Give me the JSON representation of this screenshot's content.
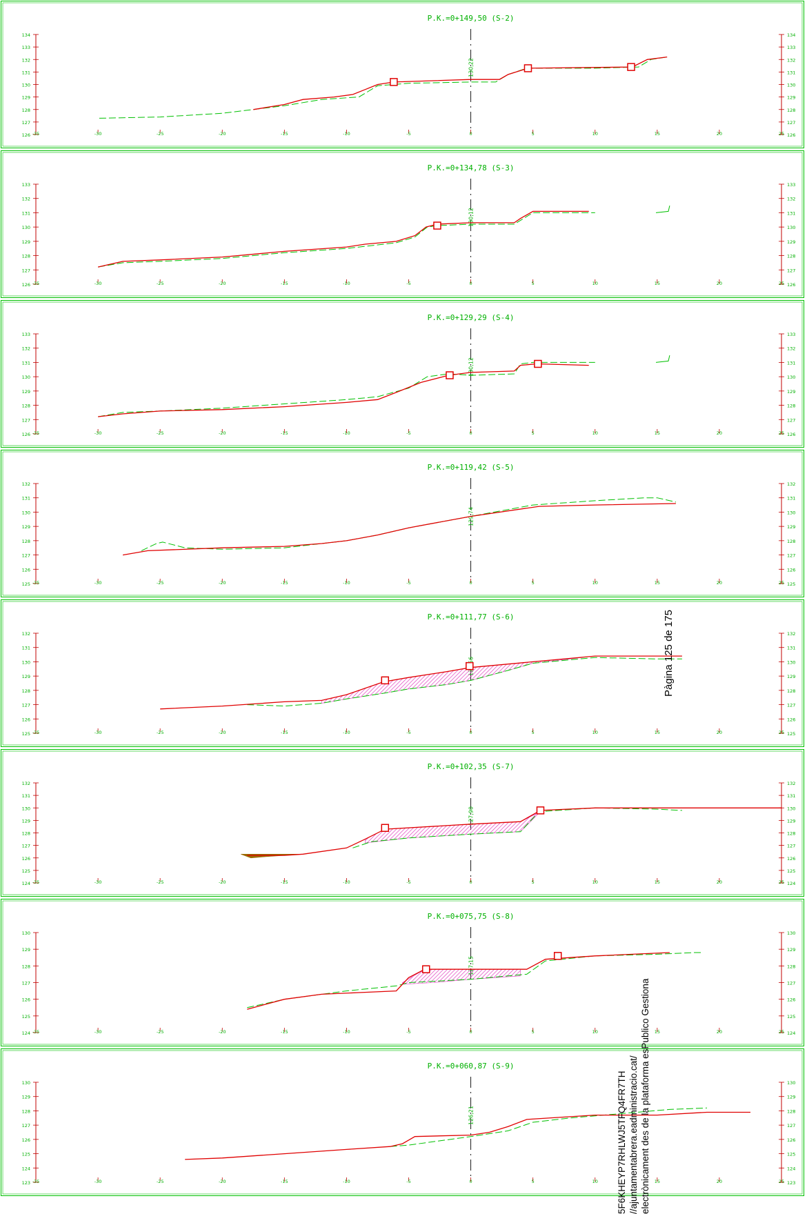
{
  "colors": {
    "frame": "#00c000",
    "axis": "#c00000",
    "label": "#00b000",
    "terrain": "#00c000",
    "project": "#e00000",
    "fill_hatch": "#e040c0",
    "fill_solid": "#9a6a00",
    "centerline": "#000000"
  },
  "x_ticks": [
    -35,
    -30,
    -25,
    -20,
    -15,
    -10,
    -5,
    0,
    5,
    10,
    15,
    20,
    25
  ],
  "sections": [
    {
      "title": "P.K.=0+149,50 (S-2)",
      "center_label": "130,22",
      "ylim": [
        126,
        134
      ],
      "y_ticks": [
        126,
        127,
        128,
        129,
        130,
        131,
        132,
        133,
        134
      ],
      "terrain": [
        [
          -29.9,
          127.3
        ],
        [
          -25,
          127.4
        ],
        [
          -20,
          127.7
        ],
        [
          -15,
          128.3
        ],
        [
          -12,
          128.8
        ],
        [
          -9,
          129.0
        ],
        [
          -7.5,
          129.9
        ],
        [
          -5,
          130.1
        ],
        [
          0,
          130.2
        ],
        [
          2,
          130.2
        ],
        [
          3,
          130.8
        ],
        [
          4.5,
          131.3
        ],
        [
          10,
          131.3
        ],
        [
          13.5,
          131.4
        ],
        [
          14.5,
          132.0
        ],
        [
          15.8,
          132.2
        ]
      ],
      "project": [
        [
          -17.5,
          128.0
        ],
        [
          -15,
          128.4
        ],
        [
          -13.5,
          128.8
        ],
        [
          -11,
          129.0
        ],
        [
          -9.5,
          129.2
        ],
        [
          -8.5,
          129.6
        ],
        [
          -7.5,
          130.0
        ],
        [
          -6.2,
          130.2
        ],
        [
          0,
          130.4
        ],
        [
          2.3,
          130.4
        ],
        [
          3,
          130.8
        ],
        [
          4.6,
          131.3
        ],
        [
          13,
          131.4
        ],
        [
          14.2,
          132.0
        ],
        [
          15.8,
          132.2
        ]
      ],
      "markers": [
        [
          -6.2,
          130.2
        ],
        [
          4.6,
          131.3
        ],
        [
          12.9,
          131.4
        ]
      ]
    },
    {
      "title": "P.K.=0+134,78 (S-3)",
      "center_label": "130,12",
      "ylim": [
        126,
        133
      ],
      "y_ticks": [
        126,
        127,
        128,
        129,
        130,
        131,
        132,
        133
      ],
      "terrain": [
        [
          -30,
          127.2
        ],
        [
          -28,
          127.5
        ],
        [
          -25,
          127.6
        ],
        [
          -20,
          127.8
        ],
        [
          -15,
          128.2
        ],
        [
          -10,
          128.5
        ],
        [
          -6,
          128.9
        ],
        [
          -4.5,
          129.3
        ],
        [
          -3.5,
          130.0
        ],
        [
          -2.7,
          130.1
        ],
        [
          0,
          130.2
        ],
        [
          3.5,
          130.2
        ],
        [
          5,
          131.0
        ],
        [
          10,
          131.0
        ]
      ],
      "project": [
        [
          -30,
          127.2
        ],
        [
          -28,
          127.6
        ],
        [
          -25,
          127.7
        ],
        [
          -20,
          127.9
        ],
        [
          -15,
          128.3
        ],
        [
          -10,
          128.6
        ],
        [
          -8.5,
          128.8
        ],
        [
          -6,
          129.0
        ],
        [
          -4.5,
          129.4
        ],
        [
          -3.6,
          130.0
        ],
        [
          -2.7,
          130.2
        ],
        [
          0,
          130.3
        ],
        [
          3.5,
          130.3
        ],
        [
          4,
          130.6
        ],
        [
          5,
          131.1
        ],
        [
          9.5,
          131.1
        ]
      ],
      "markers": [
        [
          -2.7,
          130.1
        ]
      ],
      "extra": [
        [
          [
            14.9,
            131.0
          ],
          [
            15.9,
            131.1
          ],
          [
            16.0,
            131.5
          ]
        ]
      ]
    },
    {
      "title": "P.K.=0+129,29 (S-4)",
      "center_label": "130,12",
      "ylim": [
        126,
        133
      ],
      "y_ticks": [
        126,
        127,
        128,
        129,
        130,
        131,
        132,
        133
      ],
      "terrain": [
        [
          -30,
          127.2
        ],
        [
          -28,
          127.5
        ],
        [
          -25,
          127.6
        ],
        [
          -20,
          127.8
        ],
        [
          -15,
          128.1
        ],
        [
          -10,
          128.4
        ],
        [
          -7.5,
          128.6
        ],
        [
          -5,
          129.2
        ],
        [
          -3.5,
          130.0
        ],
        [
          -1.8,
          130.2
        ],
        [
          0,
          130.1
        ],
        [
          3.5,
          130.2
        ],
        [
          4,
          130.9
        ],
        [
          5,
          131.0
        ],
        [
          10,
          131.0
        ]
      ],
      "project": [
        [
          -30,
          127.2
        ],
        [
          -28,
          127.4
        ],
        [
          -25,
          127.6
        ],
        [
          -20,
          127.7
        ],
        [
          -15,
          127.9
        ],
        [
          -10,
          128.2
        ],
        [
          -7.5,
          128.4
        ],
        [
          -6,
          128.9
        ],
        [
          -4,
          129.6
        ],
        [
          -1.8,
          130.1
        ],
        [
          0,
          130.3
        ],
        [
          3.5,
          130.4
        ],
        [
          4,
          130.8
        ],
        [
          5.3,
          130.9
        ],
        [
          9.5,
          130.8
        ]
      ],
      "markers": [
        [
          -1.7,
          130.1
        ],
        [
          5.4,
          130.9
        ]
      ],
      "extra": [
        [
          [
            14.9,
            131.0
          ],
          [
            15.9,
            131.1
          ],
          [
            16.0,
            131.5
          ]
        ]
      ]
    },
    {
      "title": "P.K.=0+119,42 (S-5)",
      "center_label": "129,74",
      "ylim": [
        125,
        132
      ],
      "y_ticks": [
        125,
        126,
        127,
        128,
        129,
        130,
        131,
        132
      ],
      "terrain": [
        [
          -26.5,
          127.3
        ],
        [
          -25.3,
          127.8
        ],
        [
          -24.8,
          127.9
        ],
        [
          -23,
          127.5
        ],
        [
          -20,
          127.4
        ],
        [
          -15,
          127.5
        ],
        [
          -10,
          128.0
        ],
        [
          -7.5,
          128.4
        ],
        [
          -5,
          128.9
        ],
        [
          0,
          129.7
        ],
        [
          5,
          130.5
        ],
        [
          10,
          130.8
        ],
        [
          14,
          131.0
        ],
        [
          15,
          131.0
        ],
        [
          16.5,
          130.7
        ]
      ],
      "project": [
        [
          -28,
          127.0
        ],
        [
          -26,
          127.3
        ],
        [
          -20,
          127.5
        ],
        [
          -15,
          127.6
        ],
        [
          -12,
          127.8
        ],
        [
          -10,
          128.0
        ],
        [
          -7.5,
          128.4
        ],
        [
          -5,
          128.9
        ],
        [
          0,
          129.7
        ],
        [
          5.5,
          130.4
        ],
        [
          10,
          130.5
        ],
        [
          16.5,
          130.6
        ]
      ],
      "markers": []
    },
    {
      "title": "P.K.=0+111,77 (S-6)",
      "center_label": "129,56",
      "ylim": [
        125,
        132
      ],
      "y_ticks": [
        125,
        126,
        127,
        128,
        129,
        130,
        131,
        132
      ],
      "terrain": [
        [
          -18,
          127.0
        ],
        [
          -15,
          126.9
        ],
        [
          -12,
          127.1
        ],
        [
          -10,
          127.4
        ],
        [
          -7,
          127.8
        ],
        [
          -5,
          128.1
        ],
        [
          -2,
          128.4
        ],
        [
          0,
          128.7
        ],
        [
          3,
          129.4
        ],
        [
          5,
          129.9
        ],
        [
          10,
          130.3
        ],
        [
          15,
          130.2
        ],
        [
          17,
          130.2
        ]
      ],
      "project": [
        [
          -25,
          126.7
        ],
        [
          -20,
          126.9
        ],
        [
          -15,
          127.2
        ],
        [
          -12,
          127.3
        ],
        [
          -10,
          127.7
        ],
        [
          -7,
          128.6
        ],
        [
          -5,
          128.9
        ],
        [
          -2,
          129.3
        ],
        [
          0,
          129.6
        ],
        [
          5,
          130.0
        ],
        [
          10,
          130.4
        ],
        [
          17,
          130.4
        ]
      ],
      "markers": [
        [
          -6.9,
          128.7
        ],
        [
          -0.1,
          129.7
        ]
      ],
      "fills": [
        {
          "style": "hatch",
          "top": [
            [
              -12,
              127.3
            ],
            [
              -10,
              127.7
            ],
            [
              -7,
              128.6
            ],
            [
              -5,
              128.9
            ],
            [
              -2,
              129.3
            ],
            [
              0,
              129.6
            ],
            [
              5,
              130.0
            ],
            [
              9,
              130.3
            ]
          ],
          "bottom": [
            [
              -12,
              127.1
            ],
            [
              -10,
              127.4
            ],
            [
              -7,
              127.8
            ],
            [
              -5,
              128.1
            ],
            [
              -2,
              128.4
            ],
            [
              0,
              128.7
            ],
            [
              3,
              129.4
            ],
            [
              5,
              129.9
            ],
            [
              9,
              130.3
            ]
          ]
        }
      ]
    },
    {
      "title": "P.K.=0+102,35 (S-7)",
      "center_label": "127,90",
      "ylim": [
        124,
        132
      ],
      "y_ticks": [
        124,
        125,
        126,
        127,
        128,
        129,
        130,
        131,
        132
      ],
      "terrain": [
        [
          -9.5,
          126.8
        ],
        [
          -8,
          127.3
        ],
        [
          -5,
          127.6
        ],
        [
          0,
          127.9
        ],
        [
          4,
          128.1
        ],
        [
          5.5,
          129.7
        ],
        [
          10,
          130.0
        ],
        [
          15,
          129.9
        ],
        [
          17,
          129.8
        ]
      ],
      "project": [
        [
          -18,
          126.2
        ],
        [
          -15,
          126.2
        ],
        [
          -13.5,
          126.3
        ],
        [
          -10,
          126.8
        ],
        [
          -8.5,
          127.5
        ],
        [
          -6.9,
          128.3
        ],
        [
          0,
          128.7
        ],
        [
          4,
          128.9
        ],
        [
          5.6,
          129.8
        ],
        [
          10,
          130.0
        ],
        [
          25,
          130.0
        ]
      ],
      "markers": [
        [
          -6.9,
          128.4
        ],
        [
          5.6,
          129.8
        ]
      ],
      "fills": [
        {
          "style": "hatch",
          "top": [
            [
              -8.5,
              127.5
            ],
            [
              -6.9,
              128.3
            ],
            [
              0,
              128.7
            ],
            [
              4,
              128.9
            ],
            [
              5.6,
              129.7
            ]
          ],
          "bottom": [
            [
              -8.5,
              127.2
            ],
            [
              -5,
              127.6
            ],
            [
              0,
              127.9
            ],
            [
              4,
              128.1
            ],
            [
              5.6,
              129.7
            ]
          ]
        },
        {
          "style": "solid",
          "top": [
            [
              -18.5,
              126.3
            ],
            [
              -15,
              126.3
            ],
            [
              -13.5,
              126.3
            ]
          ],
          "bottom": [
            [
              -18.5,
              126.3
            ],
            [
              -17.7,
              126.0
            ],
            [
              -16.5,
              126.1
            ],
            [
              -13.5,
              126.3
            ]
          ]
        }
      ]
    },
    {
      "title": "P.K.=0+075,75 (S-8)",
      "center_label": "127,15",
      "ylim": [
        124,
        130
      ],
      "y_ticks": [
        124,
        125,
        126,
        127,
        128,
        129,
        130
      ],
      "terrain": [
        [
          -18,
          125.5
        ],
        [
          -15,
          126.0
        ],
        [
          -10,
          126.5
        ],
        [
          -6,
          126.8
        ],
        [
          -5,
          127.0
        ],
        [
          0,
          127.2
        ],
        [
          4.5,
          127.5
        ],
        [
          6,
          128.3
        ],
        [
          10,
          128.6
        ],
        [
          15,
          128.7
        ],
        [
          18,
          128.8
        ],
        [
          18.7,
          128.8
        ]
      ],
      "project": [
        [
          -18,
          125.4
        ],
        [
          -15,
          126.0
        ],
        [
          -12,
          126.3
        ],
        [
          -9,
          126.4
        ],
        [
          -6,
          126.5
        ],
        [
          -5,
          127.3
        ],
        [
          -3.7,
          127.8
        ],
        [
          0,
          127.8
        ],
        [
          4.5,
          127.8
        ],
        [
          6,
          128.4
        ],
        [
          10,
          128.6
        ],
        [
          16,
          128.8
        ]
      ],
      "markers": [
        [
          -3.6,
          127.8
        ],
        [
          7.0,
          128.6
        ]
      ],
      "fills": [
        {
          "style": "hatch",
          "top": [
            [
              -5.5,
              127.0
            ],
            [
              -3.7,
              127.8
            ],
            [
              0,
              127.8
            ],
            [
              4,
              127.8
            ]
          ],
          "bottom": [
            [
              -5.5,
              126.9
            ],
            [
              -3,
              127.0
            ],
            [
              0,
              127.2
            ],
            [
              4,
              127.4
            ]
          ]
        }
      ]
    },
    {
      "title": "P.K.=0+060,87 (S-9)",
      "center_label": "126,21",
      "ylim": [
        123,
        130
      ],
      "y_ticks": [
        123,
        124,
        125,
        126,
        127,
        128,
        129,
        130
      ],
      "terrain": [
        [
          -6.5,
          125.5
        ],
        [
          -5,
          125.6
        ],
        [
          0,
          126.2
        ],
        [
          3,
          126.6
        ],
        [
          5,
          127.2
        ],
        [
          8,
          127.5
        ],
        [
          12,
          127.8
        ],
        [
          16,
          128.1
        ],
        [
          19,
          128.2
        ]
      ],
      "project": [
        [
          -23,
          124.6
        ],
        [
          -20,
          124.7
        ],
        [
          -15,
          125.0
        ],
        [
          -10,
          125.3
        ],
        [
          -6.5,
          125.5
        ],
        [
          -5.5,
          125.7
        ],
        [
          -4.5,
          126.2
        ],
        [
          0,
          126.3
        ],
        [
          1.5,
          126.5
        ],
        [
          3,
          126.9
        ],
        [
          4.5,
          127.4
        ],
        [
          10,
          127.7
        ],
        [
          15,
          127.7
        ],
        [
          19,
          127.9
        ],
        [
          22.5,
          127.9
        ]
      ],
      "markers": []
    }
  ],
  "side_text": {
    "line1": "5F6KHEYP7RHLWJ5TFQ4FR7TH",
    "line2": "//ajuntamentabrera.eadministracio.cat/",
    "line3": "electrònicament des de la plataforma esPublico Gestiona",
    "page": "Pàgina 125 de 175"
  }
}
